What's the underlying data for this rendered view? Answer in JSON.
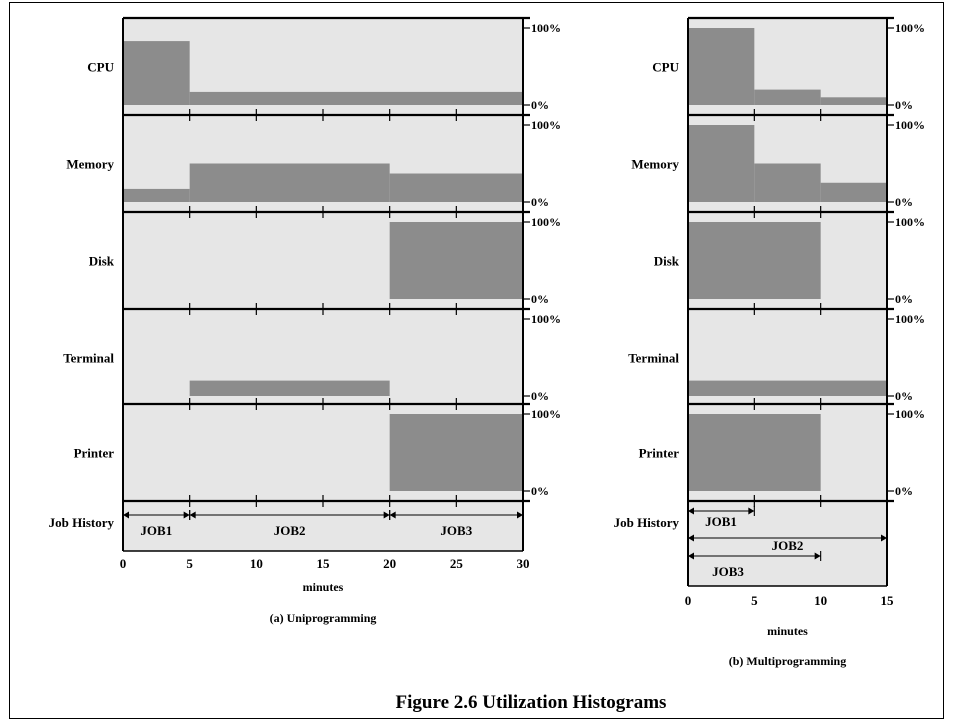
{
  "figure_title": "Figure 2.6  Utilization Histograms",
  "colors": {
    "panel_bg": "#e6e6e6",
    "bar_fill": "#8c8c8c",
    "stroke": "#000000"
  },
  "chart_data": [
    {
      "type": "histogram",
      "subtitle": "(a) Uniprogramming",
      "xlabel": "minutes",
      "xlim": [
        0,
        30
      ],
      "xticks": [
        0,
        5,
        10,
        15,
        20,
        25,
        30
      ],
      "pct_labels": [
        "100%",
        "0%"
      ],
      "job_history_label": "Job History",
      "resources": [
        {
          "name": "CPU",
          "segments": [
            {
              "start": 0,
              "end": 5,
              "value": 83
            },
            {
              "start": 5,
              "end": 30,
              "value": 17
            }
          ]
        },
        {
          "name": "Memory",
          "segments": [
            {
              "start": 0,
              "end": 5,
              "value": 17
            },
            {
              "start": 5,
              "end": 20,
              "value": 50
            },
            {
              "start": 20,
              "end": 30,
              "value": 37
            }
          ]
        },
        {
          "name": "Disk",
          "segments": [
            {
              "start": 20,
              "end": 30,
              "value": 100
            }
          ]
        },
        {
          "name": "Terminal",
          "segments": [
            {
              "start": 5,
              "end": 20,
              "value": 20
            }
          ]
        },
        {
          "name": "Printer",
          "segments": [
            {
              "start": 20,
              "end": 30,
              "value": 100
            }
          ]
        }
      ],
      "jobs": [
        {
          "name": "JOB1",
          "start": 0,
          "end": 5
        },
        {
          "name": "JOB2",
          "start": 5,
          "end": 20
        },
        {
          "name": "JOB3",
          "start": 20,
          "end": 30
        }
      ]
    },
    {
      "type": "histogram",
      "subtitle": "(b) Multiprogramming",
      "xlabel": "minutes",
      "xlim": [
        0,
        15
      ],
      "xticks": [
        0,
        5,
        10,
        15
      ],
      "pct_labels": [
        "100%",
        "0%"
      ],
      "job_history_label": "Job History",
      "resources": [
        {
          "name": "CPU",
          "segments": [
            {
              "start": 0,
              "end": 5,
              "value": 100
            },
            {
              "start": 5,
              "end": 10,
              "value": 20
            },
            {
              "start": 10,
              "end": 15,
              "value": 10
            }
          ]
        },
        {
          "name": "Memory",
          "segments": [
            {
              "start": 0,
              "end": 5,
              "value": 100
            },
            {
              "start": 5,
              "end": 10,
              "value": 50
            },
            {
              "start": 10,
              "end": 15,
              "value": 25
            }
          ]
        },
        {
          "name": "Disk",
          "segments": [
            {
              "start": 0,
              "end": 10,
              "value": 100
            }
          ]
        },
        {
          "name": "Terminal",
          "segments": [
            {
              "start": 0,
              "end": 15,
              "value": 20
            }
          ]
        },
        {
          "name": "Printer",
          "segments": [
            {
              "start": 0,
              "end": 10,
              "value": 100
            }
          ]
        }
      ],
      "jobs": [
        {
          "name": "JOB1",
          "start": 0,
          "end": 5
        },
        {
          "name": "JOB2",
          "start": 0,
          "end": 15
        },
        {
          "name": "JOB3",
          "start": 0,
          "end": 10
        }
      ]
    }
  ]
}
